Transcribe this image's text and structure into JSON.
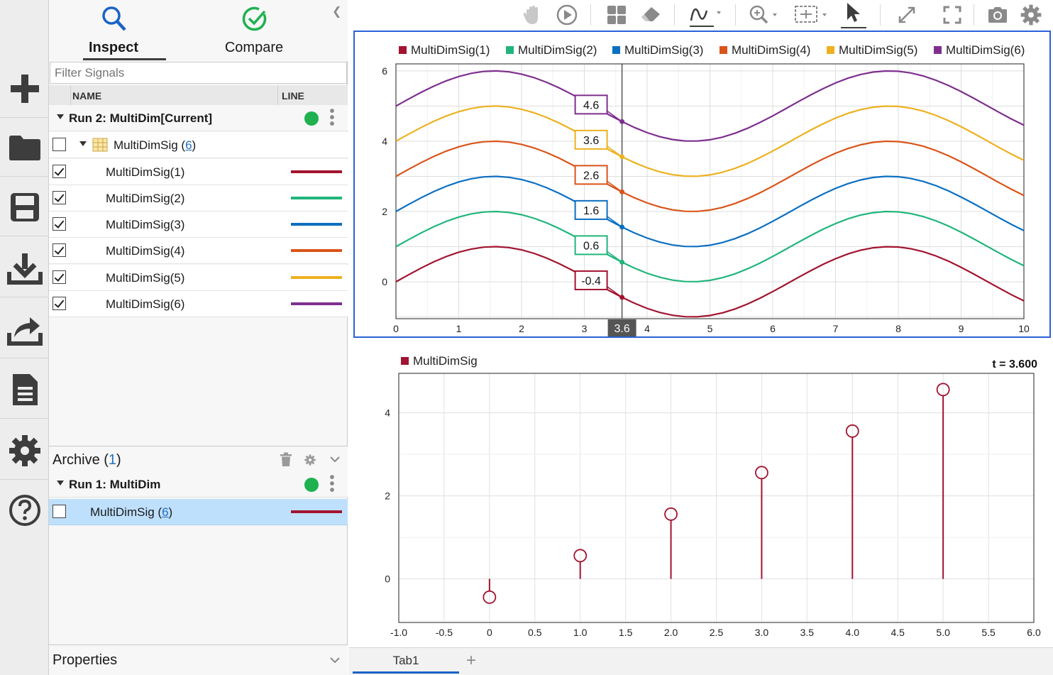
{
  "sidebar": {
    "tabs": [
      {
        "label": "Inspect",
        "icon": "search-icon",
        "active": true
      },
      {
        "label": "Compare",
        "icon": "check-circle-icon",
        "active": false
      }
    ],
    "filter_placeholder": "Filter Signals",
    "columns": {
      "name": "NAME",
      "line": "LINE"
    },
    "current_run": {
      "label": "Run 2: MultiDim[Current]",
      "group": {
        "name": "MultiDimSig",
        "count": "6"
      },
      "signals": [
        {
          "name": "MultiDimSig(1)",
          "checked": true,
          "color": "#a2142f"
        },
        {
          "name": "MultiDimSig(2)",
          "checked": true,
          "color": "#21b57b"
        },
        {
          "name": "MultiDimSig(3)",
          "checked": true,
          "color": "#0c6fc2"
        },
        {
          "name": "MultiDimSig(4)",
          "checked": true,
          "color": "#da5419"
        },
        {
          "name": "MultiDimSig(5)",
          "checked": true,
          "color": "#edb120"
        },
        {
          "name": "MultiDimSig(6)",
          "checked": true,
          "color": "#7e2f8e"
        }
      ]
    },
    "archive": {
      "label": "Archive",
      "count": "1",
      "run_label": "Run 1: MultiDim",
      "signal": {
        "name": "MultiDimSig",
        "count": "6",
        "color": "#a2142f"
      }
    },
    "properties_label": "Properties"
  },
  "rail": [
    "plus-icon",
    "folder-icon",
    "save-icon",
    "download-icon",
    "export-icon",
    "report-icon",
    "gear-icon",
    "help-icon"
  ],
  "toolbar": [
    "pan-icon",
    "play-icon",
    "layout-icon",
    "eraser-icon",
    "signal-icon",
    "zoom-icon",
    "fit-icon",
    "cursor-icon",
    "expand-icon",
    "fullscreen-icon",
    "camera-icon",
    "settings-icon"
  ],
  "chart_data": [
    {
      "type": "line",
      "legend": [
        "MultiDimSig(1)",
        "MultiDimSig(2)",
        "MultiDimSig(3)",
        "MultiDimSig(4)",
        "MultiDimSig(5)",
        "MultiDimSig(6)"
      ],
      "colors": [
        "#a2142f",
        "#21b57b",
        "#0c6fc2",
        "#da5419",
        "#edb120",
        "#7e2f8e"
      ],
      "legend_position": "top",
      "x_ticks": [
        "0",
        "1",
        "2",
        "3",
        "4",
        "5",
        "6",
        "7",
        "8",
        "9",
        "10"
      ],
      "y_ticks": [
        "0",
        "2",
        "4",
        "6"
      ],
      "xlim": [
        0,
        10
      ],
      "ylim": [
        -1.05,
        6.2
      ],
      "series_formula": "y = sin(x) + (k - 1), k = 1..6",
      "offsets": [
        0,
        1,
        2,
        3,
        4,
        5
      ],
      "x_step": 0.2,
      "cursor": {
        "x": 3.6,
        "label": "3.6"
      },
      "cursor_values": [
        "-0.4",
        "0.6",
        "1.6",
        "2.6",
        "3.6",
        "4.6"
      ],
      "grid": true
    },
    {
      "type": "stem",
      "legend": [
        "MultiDimSig"
      ],
      "colors": [
        "#a2142f"
      ],
      "time_label": "t = 3.600",
      "x": [
        0,
        1,
        2,
        3,
        4,
        5
      ],
      "values": [
        -0.44,
        0.56,
        1.56,
        2.56,
        3.56,
        4.56
      ],
      "x_ticks": [
        "-1.0",
        "-0.5",
        "0",
        "0.5",
        "1.0",
        "1.5",
        "2.0",
        "2.5",
        "3.0",
        "3.5",
        "4.0",
        "4.5",
        "5.0",
        "5.5",
        "6.0"
      ],
      "y_ticks": [
        "0",
        "2",
        "4"
      ],
      "xlim": [
        -1,
        6
      ],
      "ylim": [
        -1.05,
        4.95
      ],
      "grid": true
    }
  ],
  "doc_tabs": {
    "active": "Tab1",
    "add_label": "+"
  }
}
